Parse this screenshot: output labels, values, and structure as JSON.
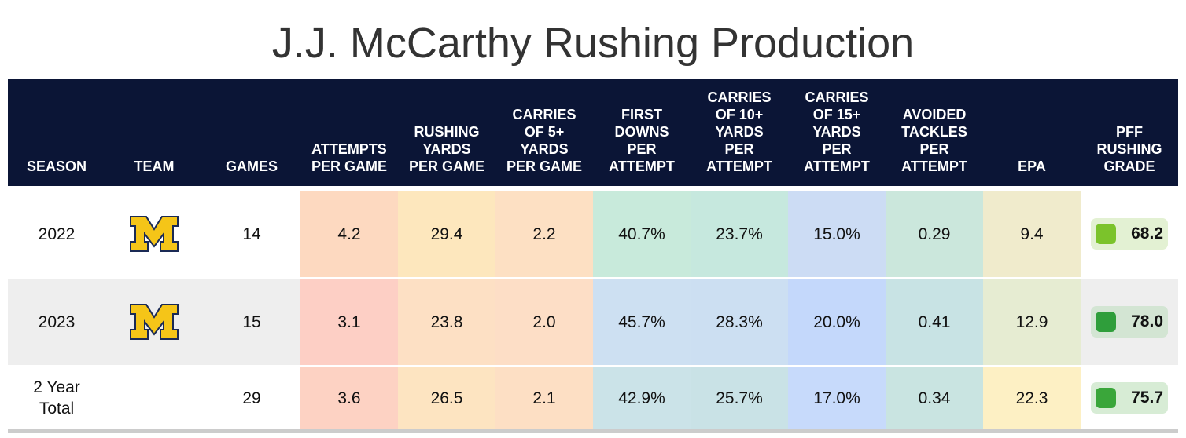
{
  "title": "J.J. McCarthy Rushing Production",
  "columns": [
    "SEASON",
    "TEAM",
    "GAMES",
    "ATTEMPTS\nPER GAME",
    "RUSHING\nYARDS\nPER GAME",
    "CARRIES\nOF 5+\nYARDS\nPER GAME",
    "FIRST\nDOWNS\nPER\nATTEMPT",
    "CARRIES\nOF 10+\nYARDS\nPER\nATTEMPT",
    "CARRIES\nOF 15+\nYARDS\nPER\nATTEMPT",
    "AVOIDED\nTACKLES\nPER\nATTEMPT",
    "EPA",
    "PFF\nRUSHING\nGRADE"
  ],
  "rows": [
    {
      "season": "2022",
      "team_logo": "michigan-block-m-logo",
      "games": "14",
      "stats": [
        "4.2",
        "29.4",
        "2.2",
        "40.7%",
        "23.7%",
        "15.0%",
        "0.29",
        "9.4"
      ],
      "stat_colors": [
        "#fdd9c0",
        "#fde7bd",
        "#fde0c3",
        "#c8eadb",
        "#c6e8de",
        "#ccdcf4",
        "#cbe7dc",
        "#f0ebcc"
      ],
      "grade": "68.2",
      "grade_color": "#7bc32b",
      "grade_bg": "#e3f1d3"
    },
    {
      "season": "2023",
      "team_logo": "michigan-block-m-logo",
      "games": "15",
      "stats": [
        "3.1",
        "23.8",
        "2.0",
        "45.7%",
        "28.3%",
        "20.0%",
        "0.41",
        "12.9"
      ],
      "stat_colors": [
        "#fdcfc5",
        "#fde0c4",
        "#fddec6",
        "#cde0f2",
        "#ccdff2",
        "#c4d8fb",
        "#c8e3e4",
        "#e6ecd2"
      ],
      "grade": "78.0",
      "grade_color": "#2f9e3b",
      "grade_bg": "#d3e5d3"
    },
    {
      "season": "2 Year\nTotal",
      "team_logo": "",
      "games": "29",
      "stats": [
        "3.6",
        "26.5",
        "2.1",
        "42.9%",
        "25.7%",
        "17.0%",
        "0.34",
        "22.3"
      ],
      "stat_colors": [
        "#fdd2c3",
        "#fde4c1",
        "#fddfc4",
        "#cbe3e8",
        "#c9e2e6",
        "#c7dafb",
        "#c9e4e1",
        "#fdf0c4"
      ],
      "grade": "75.7",
      "grade_color": "#3aa63a",
      "grade_bg": "#d7ecd5"
    }
  ],
  "colors": {
    "header_bg": "#0b1536",
    "row_alt_bg": "#eeeeee"
  }
}
